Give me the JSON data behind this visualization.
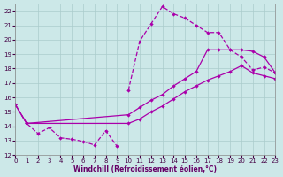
{
  "xlabel": "Windchill (Refroidissement éolien,°C)",
  "xlim": [
    0,
    23
  ],
  "ylim": [
    12,
    22.5
  ],
  "xticks": [
    0,
    1,
    2,
    3,
    4,
    5,
    6,
    7,
    8,
    9,
    10,
    11,
    12,
    13,
    14,
    15,
    16,
    17,
    18,
    19,
    20,
    21,
    22,
    23
  ],
  "yticks": [
    12,
    13,
    14,
    15,
    16,
    17,
    18,
    19,
    20,
    21,
    22
  ],
  "bg_color": "#cce8e8",
  "grid_color": "#aacccc",
  "line_color": "#aa00aa",
  "line1_x": [
    0,
    1,
    2,
    3,
    4,
    5,
    6,
    7,
    8,
    9
  ],
  "line1_y": [
    15.5,
    14.2,
    13.5,
    13.9,
    13.2,
    13.1,
    12.95,
    12.7,
    13.7,
    12.6
  ],
  "line2_x": [
    10,
    11,
    12,
    13,
    14,
    15,
    16,
    17,
    18,
    19,
    20,
    21,
    22,
    23
  ],
  "line2_y": [
    16.5,
    19.9,
    21.1,
    22.3,
    21.8,
    21.5,
    21.0,
    20.5,
    20.5,
    19.3,
    18.8,
    17.9,
    18.1,
    17.7
  ],
  "line3_x": [
    0,
    1,
    10,
    11,
    12,
    13,
    14,
    15,
    16,
    17,
    18,
    19,
    20,
    21,
    22,
    23
  ],
  "line3_y": [
    15.5,
    14.2,
    14.8,
    15.3,
    15.8,
    16.2,
    16.8,
    17.3,
    17.8,
    19.3,
    19.3,
    19.3,
    19.3,
    19.2,
    18.8,
    17.7
  ],
  "line4_x": [
    0,
    1,
    10,
    11,
    12,
    13,
    14,
    15,
    16,
    17,
    18,
    19,
    20,
    21,
    22,
    23
  ],
  "line4_y": [
    15.5,
    14.2,
    14.2,
    14.5,
    15.0,
    15.4,
    15.9,
    16.4,
    16.8,
    17.2,
    17.5,
    17.8,
    18.2,
    17.7,
    17.5,
    17.3
  ]
}
